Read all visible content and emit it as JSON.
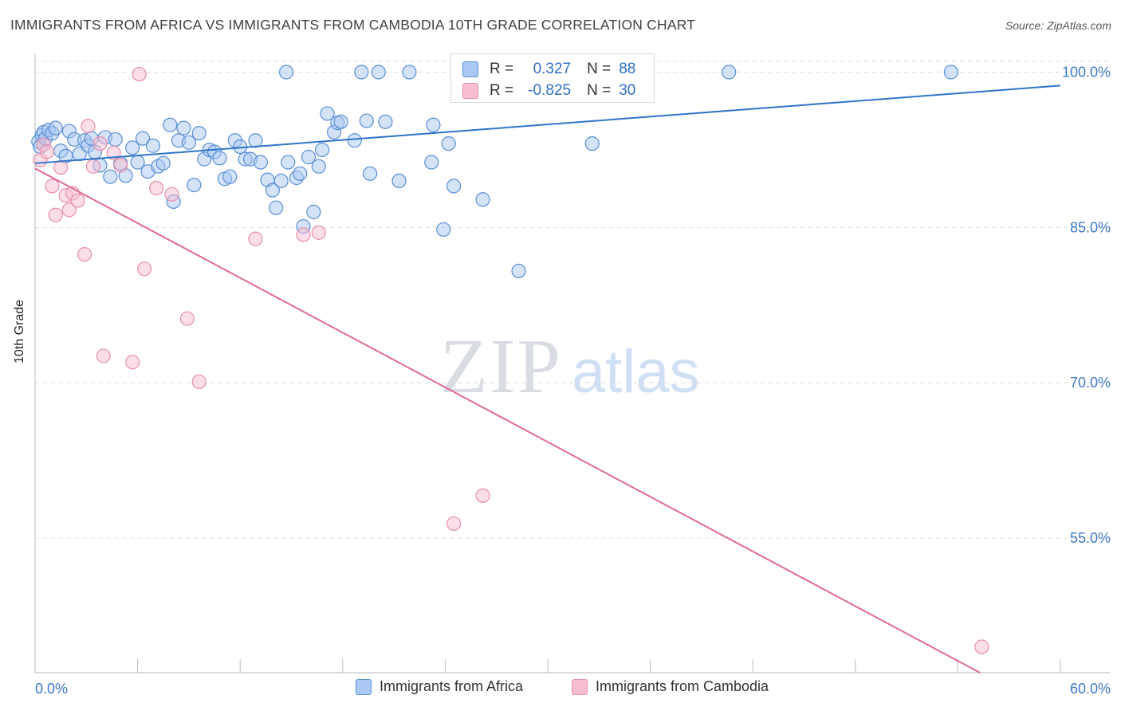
{
  "header": {
    "title": "IMMIGRANTS FROM AFRICA VS IMMIGRANTS FROM CAMBODIA 10TH GRADE CORRELATION CHART",
    "source": "Source: ZipAtlas.com"
  },
  "watermark": {
    "zip": "ZIP",
    "atlas": "atlas"
  },
  "colors": {
    "africa_fill": "#a9c8f2",
    "africa_stroke": "#5a8fd6",
    "africa_line": "#2e74c9",
    "cambodia_fill": "#f7bdd0",
    "cambodia_stroke": "#e690ad",
    "cambodia_line": "#e06b96",
    "tick_label": "#3f78c8",
    "grid": "#dcdcdc"
  },
  "stats": {
    "africa": {
      "r_label": "R =",
      "r_value": "0.327",
      "n_label": "N =",
      "n_value": "88"
    },
    "cambodia": {
      "r_label": "R =",
      "r_value": "-0.825",
      "n_label": "N =",
      "n_value": "30"
    }
  },
  "chart_data": {
    "type": "scatter",
    "title": "IMMIGRANTS FROM AFRICA VS IMMIGRANTS FROM CAMBODIA 10TH GRADE CORRELATION CHART",
    "xlabel": "",
    "ylabel": "10th Grade",
    "xlim": [
      0,
      60
    ],
    "ylim": [
      42,
      101.5
    ],
    "x_tick_labels": [
      "0.0%",
      "60.0%"
    ],
    "y_ticks": [
      100,
      85,
      70,
      55
    ],
    "y_tick_labels": [
      "100.0%",
      "85.0%",
      "70.0%",
      "55.0%"
    ],
    "grid": true,
    "legend_position": "bottom",
    "series": [
      {
        "name": "Immigrants from Africa",
        "r": 0.327,
        "n": 88,
        "trend": {
          "x": [
            0,
            60
          ],
          "y": [
            91.2,
            98.7
          ]
        },
        "points": [
          [
            0.2,
            93.3
          ],
          [
            0.3,
            92.8
          ],
          [
            0.4,
            93.9
          ],
          [
            0.5,
            94.2
          ],
          [
            0.6,
            93.6
          ],
          [
            0.8,
            94.4
          ],
          [
            1.0,
            94.1
          ],
          [
            1.2,
            94.6
          ],
          [
            1.5,
            92.4
          ],
          [
            1.8,
            91.9
          ],
          [
            2.0,
            94.3
          ],
          [
            2.3,
            93.5
          ],
          [
            2.6,
            92.1
          ],
          [
            2.9,
            93.4
          ],
          [
            3.1,
            92.9
          ],
          [
            3.3,
            93.6
          ],
          [
            3.5,
            92.3
          ],
          [
            3.8,
            91.0
          ],
          [
            4.1,
            93.7
          ],
          [
            4.4,
            89.9
          ],
          [
            4.7,
            93.5
          ],
          [
            5.0,
            91.2
          ],
          [
            5.3,
            90.0
          ],
          [
            5.7,
            92.7
          ],
          [
            6.0,
            91.3
          ],
          [
            6.3,
            93.6
          ],
          [
            6.6,
            90.4
          ],
          [
            6.9,
            92.9
          ],
          [
            7.2,
            90.9
          ],
          [
            7.5,
            91.2
          ],
          [
            7.9,
            94.9
          ],
          [
            8.1,
            87.5
          ],
          [
            8.4,
            93.4
          ],
          [
            8.7,
            94.6
          ],
          [
            9.0,
            93.2
          ],
          [
            9.3,
            89.1
          ],
          [
            9.6,
            94.1
          ],
          [
            9.9,
            91.6
          ],
          [
            10.2,
            92.5
          ],
          [
            10.5,
            92.3
          ],
          [
            10.8,
            91.7
          ],
          [
            11.1,
            89.7
          ],
          [
            11.4,
            89.9
          ],
          [
            11.7,
            93.4
          ],
          [
            12.0,
            92.8
          ],
          [
            12.3,
            91.6
          ],
          [
            12.6,
            91.6
          ],
          [
            12.9,
            93.4
          ],
          [
            13.2,
            91.3
          ],
          [
            13.6,
            89.6
          ],
          [
            13.9,
            88.6
          ],
          [
            14.1,
            86.9
          ],
          [
            14.4,
            89.5
          ],
          [
            14.7,
            100.0
          ],
          [
            14.8,
            91.3
          ],
          [
            15.3,
            89.8
          ],
          [
            15.5,
            90.2
          ],
          [
            15.7,
            85.1
          ],
          [
            16.0,
            91.8
          ],
          [
            16.3,
            86.5
          ],
          [
            16.6,
            90.9
          ],
          [
            16.8,
            92.5
          ],
          [
            17.1,
            96.0
          ],
          [
            17.5,
            94.2
          ],
          [
            17.7,
            95.1
          ],
          [
            17.9,
            95.2
          ],
          [
            18.7,
            93.4
          ],
          [
            19.1,
            100.0
          ],
          [
            19.4,
            95.3
          ],
          [
            19.6,
            90.2
          ],
          [
            20.1,
            100.0
          ],
          [
            20.5,
            95.2
          ],
          [
            21.3,
            89.5
          ],
          [
            21.9,
            100.0
          ],
          [
            23.2,
            91.3
          ],
          [
            23.3,
            94.9
          ],
          [
            23.9,
            84.8
          ],
          [
            24.2,
            93.1
          ],
          [
            24.5,
            89.0
          ],
          [
            24.9,
            100.0
          ],
          [
            26.2,
            87.7
          ],
          [
            26.9,
            100.0
          ],
          [
            28.3,
            80.8
          ],
          [
            29.4,
            100.0
          ],
          [
            29.5,
            100.0
          ],
          [
            32.6,
            93.1
          ],
          [
            40.6,
            100.0
          ],
          [
            53.6,
            100.0
          ]
        ]
      },
      {
        "name": "Immigrants from Cambodia",
        "r": -0.825,
        "n": 30,
        "trend": {
          "x": [
            0,
            55.3
          ],
          "y": [
            90.7,
            42.0
          ]
        },
        "points": [
          [
            0.3,
            91.5
          ],
          [
            0.5,
            93.0
          ],
          [
            0.7,
            92.3
          ],
          [
            1.0,
            89.0
          ],
          [
            1.2,
            86.2
          ],
          [
            1.5,
            90.8
          ],
          [
            1.8,
            88.1
          ],
          [
            2.0,
            86.7
          ],
          [
            2.2,
            88.3
          ],
          [
            2.5,
            87.6
          ],
          [
            2.9,
            82.4
          ],
          [
            3.1,
            94.8
          ],
          [
            3.4,
            90.9
          ],
          [
            3.8,
            93.1
          ],
          [
            4.0,
            72.6
          ],
          [
            4.6,
            92.2
          ],
          [
            5.0,
            91.0
          ],
          [
            5.7,
            72.0
          ],
          [
            6.1,
            99.8
          ],
          [
            6.4,
            81.0
          ],
          [
            7.1,
            88.8
          ],
          [
            8.0,
            88.2
          ],
          [
            8.9,
            76.2
          ],
          [
            9.6,
            70.1
          ],
          [
            12.9,
            83.9
          ],
          [
            15.7,
            84.3
          ],
          [
            16.6,
            84.5
          ],
          [
            24.5,
            56.4
          ],
          [
            26.2,
            59.1
          ],
          [
            55.4,
            44.5
          ]
        ]
      }
    ]
  },
  "legend": {
    "africa_label": "Immigrants from Africa",
    "cambodia_label": "Immigrants from Cambodia"
  },
  "axis": {
    "y_label": "10th Grade",
    "x_min_label": "0.0%",
    "x_max_label": "60.0%"
  }
}
